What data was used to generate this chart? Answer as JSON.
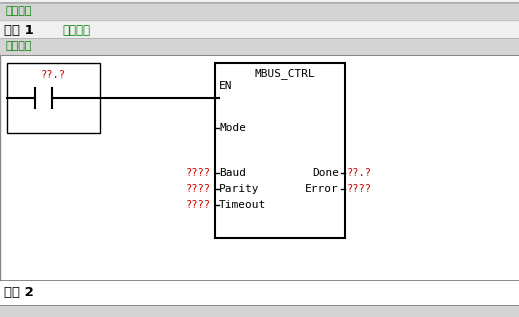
{
  "bg_color": "#f0f0f0",
  "white": "#ffffff",
  "black": "#000000",
  "green": "#008000",
  "red": "#cc0000",
  "gray_bar": "#d4d4d4",
  "header_line_color": "#888888",
  "prog_comment": "程序注释",
  "network1_label": "网络 1",
  "network1_title": "网络标题",
  "network1_comment": "网络注释",
  "network2_label": "网络 2",
  "contact_label": "??.?",
  "mbus_title": "MBUS_CTRL",
  "en_label": "EN",
  "mode_label": "Mode",
  "baud_label": "Baud",
  "parity_label": "Parity",
  "timeout_label": "Timeout",
  "done_label": "Done",
  "error_label": "Error",
  "done_var": "??.?",
  "error_var": "????",
  "baud_var": "????",
  "parity_var": "????",
  "timeout_var": "????",
  "fig_width": 5.19,
  "fig_height": 3.17,
  "dpi": 100
}
